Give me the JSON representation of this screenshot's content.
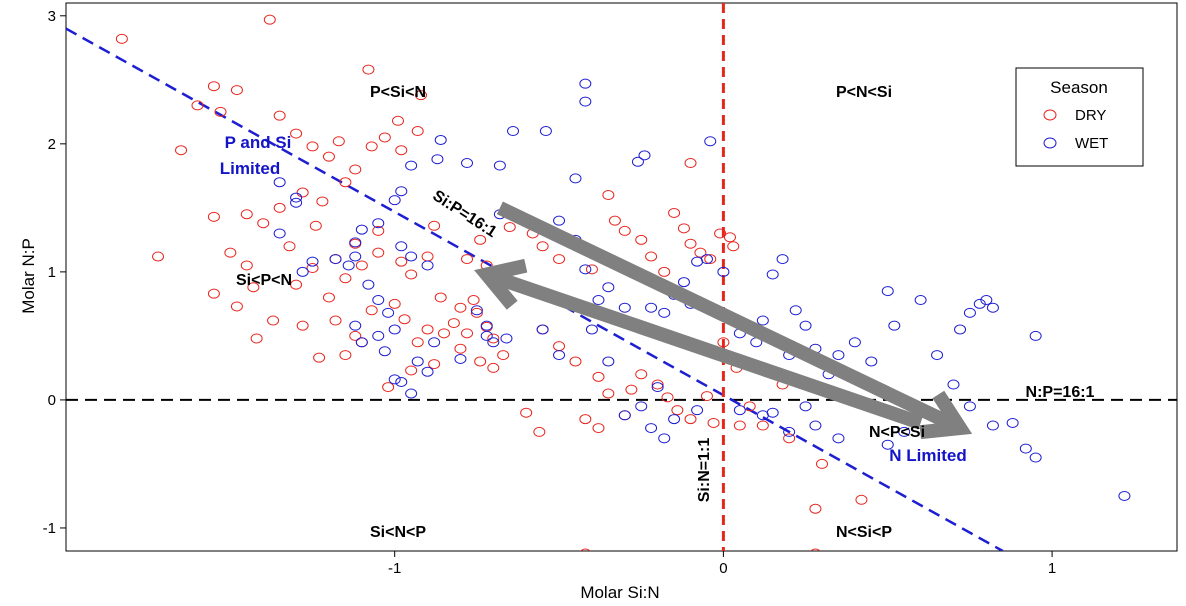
{
  "chart_data": {
    "type": "scatter",
    "xlabel": "Molar Si:N",
    "ylabel": "Molar N:P",
    "xlim": [
      -2.0,
      1.38
    ],
    "ylim": [
      -1.18,
      3.1
    ],
    "x_ticks": [
      "-1",
      "0",
      "1"
    ],
    "x_tick_values": [
      -1,
      0,
      1
    ],
    "y_ticks": [
      "-1",
      "0",
      "1",
      "2",
      "3"
    ],
    "y_tick_values": [
      -1,
      0,
      1,
      2,
      3
    ],
    "grid": false,
    "legend": {
      "title": "Season",
      "position": "top-right"
    },
    "series": [
      {
        "name": "DRY",
        "color": "#e8261e",
        "marker": "open-circle",
        "points": [
          [
            -1.83,
            2.82
          ],
          [
            -1.38,
            2.97
          ],
          [
            -1.65,
            1.95
          ],
          [
            -1.55,
            2.45
          ],
          [
            -1.48,
            2.42
          ],
          [
            -1.6,
            2.3
          ],
          [
            -1.53,
            2.25
          ],
          [
            -1.35,
            2.22
          ],
          [
            -1.3,
            2.08
          ],
          [
            -1.25,
            1.98
          ],
          [
            -1.2,
            1.9
          ],
          [
            -1.17,
            2.02
          ],
          [
            -1.07,
            1.98
          ],
          [
            -1.03,
            2.05
          ],
          [
            -0.98,
            1.95
          ],
          [
            -0.93,
            2.1
          ],
          [
            -0.92,
            2.38
          ],
          [
            -0.99,
            2.18
          ],
          [
            -1.08,
            2.58
          ],
          [
            -1.12,
            1.8
          ],
          [
            -1.15,
            1.7
          ],
          [
            -1.22,
            1.55
          ],
          [
            -1.28,
            1.62
          ],
          [
            -1.35,
            1.5
          ],
          [
            -1.4,
            1.38
          ],
          [
            -1.45,
            1.45
          ],
          [
            -1.55,
            1.43
          ],
          [
            -1.72,
            1.12
          ],
          [
            -1.5,
            1.15
          ],
          [
            -1.45,
            1.05
          ],
          [
            -1.43,
            0.88
          ],
          [
            -1.55,
            0.83
          ],
          [
            -1.48,
            0.73
          ],
          [
            -1.37,
            0.62
          ],
          [
            -1.42,
            0.48
          ],
          [
            -1.28,
            0.58
          ],
          [
            -1.18,
            0.62
          ],
          [
            -1.12,
            0.5
          ],
          [
            -1.07,
            0.7
          ],
          [
            -1.0,
            0.75
          ],
          [
            -0.97,
            0.63
          ],
          [
            -0.9,
            0.55
          ],
          [
            -0.93,
            0.45
          ],
          [
            -0.85,
            0.52
          ],
          [
            -0.82,
            0.6
          ],
          [
            -0.8,
            0.4
          ],
          [
            -0.78,
            0.52
          ],
          [
            -0.75,
            0.68
          ],
          [
            -0.72,
            0.57
          ],
          [
            -0.7,
            0.48
          ],
          [
            -0.67,
            0.35
          ],
          [
            -0.7,
            0.25
          ],
          [
            -0.74,
            0.3
          ],
          [
            -0.88,
            0.28
          ],
          [
            -0.95,
            0.23
          ],
          [
            -1.02,
            0.1
          ],
          [
            -1.1,
            0.45
          ],
          [
            -1.15,
            0.35
          ],
          [
            -1.23,
            0.33
          ],
          [
            -1.2,
            0.8
          ],
          [
            -1.15,
            0.95
          ],
          [
            -1.1,
            1.05
          ],
          [
            -1.05,
            1.15
          ],
          [
            -0.98,
            1.08
          ],
          [
            -0.95,
            0.98
          ],
          [
            -0.9,
            1.12
          ],
          [
            -0.86,
            0.8
          ],
          [
            -0.8,
            0.72
          ],
          [
            -0.76,
            0.78
          ],
          [
            -0.72,
            1.05
          ],
          [
            -0.68,
            0.9
          ],
          [
            -0.74,
            1.25
          ],
          [
            -0.78,
            1.1
          ],
          [
            -0.88,
            1.36
          ],
          [
            -1.05,
            1.32
          ],
          [
            -1.12,
            1.22
          ],
          [
            -1.18,
            1.1
          ],
          [
            -1.25,
            1.03
          ],
          [
            -1.3,
            0.9
          ],
          [
            -1.24,
            1.36
          ],
          [
            -1.32,
            1.2
          ],
          [
            -0.65,
            1.35
          ],
          [
            -0.62,
            1.42
          ],
          [
            -0.58,
            1.3
          ],
          [
            -0.55,
            1.2
          ],
          [
            -0.5,
            1.1
          ],
          [
            -0.45,
            1.22
          ],
          [
            -0.4,
            1.02
          ],
          [
            -0.33,
            1.4
          ],
          [
            -0.3,
            1.32
          ],
          [
            -0.25,
            1.25
          ],
          [
            -0.22,
            1.12
          ],
          [
            -0.18,
            1.0
          ],
          [
            -0.15,
            1.46
          ],
          [
            -0.12,
            1.34
          ],
          [
            -0.1,
            1.22
          ],
          [
            -0.07,
            1.15
          ],
          [
            -0.04,
            1.1
          ],
          [
            -0.01,
            1.3
          ],
          [
            0.02,
            1.27
          ],
          [
            0.03,
            1.2
          ],
          [
            -0.35,
            1.6
          ],
          [
            -0.1,
            1.85
          ],
          [
            -0.55,
            0.55
          ],
          [
            -0.5,
            0.42
          ],
          [
            -0.45,
            0.3
          ],
          [
            -0.38,
            0.18
          ],
          [
            -0.35,
            0.05
          ],
          [
            -0.42,
            -0.15
          ],
          [
            -0.38,
            -0.22
          ],
          [
            -0.3,
            -0.12
          ],
          [
            -0.28,
            0.08
          ],
          [
            -0.25,
            0.2
          ],
          [
            -0.2,
            0.12
          ],
          [
            -0.17,
            0.02
          ],
          [
            -0.14,
            -0.08
          ],
          [
            -0.1,
            -0.15
          ],
          [
            -0.05,
            0.03
          ],
          [
            -0.03,
            -0.18
          ],
          [
            0.0,
            0.45
          ],
          [
            0.04,
            0.25
          ],
          [
            0.08,
            -0.05
          ],
          [
            0.12,
            -0.2
          ],
          [
            0.18,
            0.12
          ],
          [
            0.2,
            -0.3
          ],
          [
            0.3,
            -0.5
          ],
          [
            0.05,
            -0.2
          ],
          [
            -0.42,
            -1.2
          ],
          [
            0.28,
            -0.85
          ],
          [
            0.42,
            -0.78
          ],
          [
            0.28,
            -1.2
          ],
          [
            -0.56,
            -0.25
          ],
          [
            -0.6,
            -0.1
          ]
        ]
      },
      {
        "name": "WET",
        "color": "#1e1ed2",
        "marker": "open-circle",
        "points": [
          [
            -0.42,
            2.47
          ],
          [
            -0.42,
            2.33
          ],
          [
            -0.64,
            2.1
          ],
          [
            -0.54,
            2.1
          ],
          [
            -0.24,
            1.91
          ],
          [
            -0.26,
            1.86
          ],
          [
            -0.04,
            2.02
          ],
          [
            -0.86,
            2.03
          ],
          [
            -0.87,
            1.88
          ],
          [
            -0.78,
            1.85
          ],
          [
            -0.68,
            1.83
          ],
          [
            -0.95,
            1.83
          ],
          [
            -0.45,
            1.73
          ],
          [
            -1.35,
            1.7
          ],
          [
            -1.3,
            1.58
          ],
          [
            -1.3,
            1.54
          ],
          [
            -0.98,
            1.63
          ],
          [
            -1.0,
            1.56
          ],
          [
            -1.05,
            1.38
          ],
          [
            -1.1,
            1.33
          ],
          [
            -1.12,
            1.23
          ],
          [
            -0.98,
            1.2
          ],
          [
            -0.95,
            1.12
          ],
          [
            -0.9,
            1.05
          ],
          [
            -1.12,
            1.12
          ],
          [
            -1.14,
            1.05
          ],
          [
            -1.18,
            1.1
          ],
          [
            -1.25,
            1.08
          ],
          [
            -1.28,
            1.0
          ],
          [
            -1.35,
            1.3
          ],
          [
            -1.08,
            0.9
          ],
          [
            -1.05,
            0.78
          ],
          [
            -1.02,
            0.68
          ],
          [
            -1.0,
            0.55
          ],
          [
            -1.05,
            0.5
          ],
          [
            -1.03,
            0.38
          ],
          [
            -1.1,
            0.45
          ],
          [
            -1.12,
            0.58
          ],
          [
            -1.0,
            0.16
          ],
          [
            -0.98,
            0.14
          ],
          [
            -0.93,
            0.3
          ],
          [
            -0.88,
            0.45
          ],
          [
            -0.9,
            0.22
          ],
          [
            -0.95,
            0.05
          ],
          [
            -0.8,
            0.32
          ],
          [
            -0.72,
            0.5
          ],
          [
            -0.7,
            0.45
          ],
          [
            -0.66,
            0.48
          ],
          [
            -0.72,
            0.58
          ],
          [
            -0.75,
            0.7
          ],
          [
            -0.68,
            1.45
          ],
          [
            -0.5,
            1.4
          ],
          [
            -0.45,
            1.25
          ],
          [
            -0.42,
            1.02
          ],
          [
            -0.38,
            0.78
          ],
          [
            -0.35,
            0.88
          ],
          [
            -0.3,
            0.72
          ],
          [
            -0.28,
            0.6
          ],
          [
            -0.22,
            0.72
          ],
          [
            -0.18,
            0.68
          ],
          [
            -0.15,
            0.82
          ],
          [
            -0.12,
            0.92
          ],
          [
            -0.1,
            0.75
          ],
          [
            -0.08,
            1.08
          ],
          [
            -0.05,
            1.1
          ],
          [
            0.0,
            1.0
          ],
          [
            0.02,
            0.65
          ],
          [
            0.05,
            0.52
          ],
          [
            0.1,
            0.45
          ],
          [
            0.12,
            0.62
          ],
          [
            0.15,
            0.98
          ],
          [
            0.18,
            1.1
          ],
          [
            0.22,
            0.7
          ],
          [
            0.25,
            0.58
          ],
          [
            0.2,
            0.35
          ],
          [
            0.28,
            0.4
          ],
          [
            0.32,
            0.2
          ],
          [
            0.35,
            0.35
          ],
          [
            0.4,
            0.45
          ],
          [
            0.45,
            0.3
          ],
          [
            0.5,
            0.85
          ],
          [
            0.52,
            0.58
          ],
          [
            0.6,
            0.78
          ],
          [
            0.65,
            0.35
          ],
          [
            0.7,
            0.12
          ],
          [
            0.75,
            0.68
          ],
          [
            0.78,
            0.75
          ],
          [
            0.8,
            0.78
          ],
          [
            0.82,
            0.72
          ],
          [
            0.72,
            0.55
          ],
          [
            0.95,
            0.5
          ],
          [
            0.05,
            -0.08
          ],
          [
            0.12,
            -0.12
          ],
          [
            0.15,
            -0.1
          ],
          [
            0.2,
            -0.25
          ],
          [
            0.25,
            -0.05
          ],
          [
            0.28,
            -0.2
          ],
          [
            0.35,
            -0.3
          ],
          [
            0.5,
            -0.35
          ],
          [
            0.55,
            -0.25
          ],
          [
            0.6,
            -0.1
          ],
          [
            0.68,
            -0.15
          ],
          [
            0.75,
            -0.05
          ],
          [
            0.82,
            -0.2
          ],
          [
            0.88,
            -0.18
          ],
          [
            0.92,
            -0.38
          ],
          [
            0.95,
            -0.45
          ],
          [
            1.22,
            -0.75
          ],
          [
            -0.2,
            0.1
          ],
          [
            -0.25,
            -0.05
          ],
          [
            -0.3,
            -0.12
          ],
          [
            -0.22,
            -0.22
          ],
          [
            -0.18,
            -0.3
          ],
          [
            -0.15,
            -0.15
          ],
          [
            -0.08,
            -0.08
          ],
          [
            -0.35,
            0.3
          ],
          [
            -0.4,
            0.55
          ],
          [
            -0.5,
            0.35
          ],
          [
            -0.55,
            0.55
          ]
        ]
      }
    ],
    "reference_lines": [
      {
        "kind": "vertical",
        "x": 0,
        "color": "#e8261e",
        "label": "Si:N=1:1"
      },
      {
        "kind": "horizontal",
        "y": 0,
        "color": "#000000",
        "label": "N:P=16:1"
      },
      {
        "kind": "diagonal",
        "from": [
          -2.0,
          2.9
        ],
        "to": [
          0.85,
          -1.18
        ],
        "color": "#1e1ed2",
        "label": "Si:P=16:1"
      }
    ],
    "arrows": [
      {
        "from": [
          -0.68,
          1.5
        ],
        "to": [
          0.72,
          -0.22
        ],
        "color": "#808080"
      },
      {
        "from": [
          0.6,
          -0.18
        ],
        "to": [
          -0.72,
          0.98
        ],
        "color": "#808080"
      }
    ],
    "annotations": {
      "p_si_n": "P<Si<N",
      "p_n_si": "P<N<Si",
      "si_p_n": "Si<P<N",
      "n_p_si": "N<P<Si",
      "si_n_p": "Si<N<P",
      "n_si_p": "N<Si<P",
      "p_si_limited_1": "P and Si",
      "p_si_limited_2": "Limited",
      "n_limited": "N Limited"
    }
  }
}
